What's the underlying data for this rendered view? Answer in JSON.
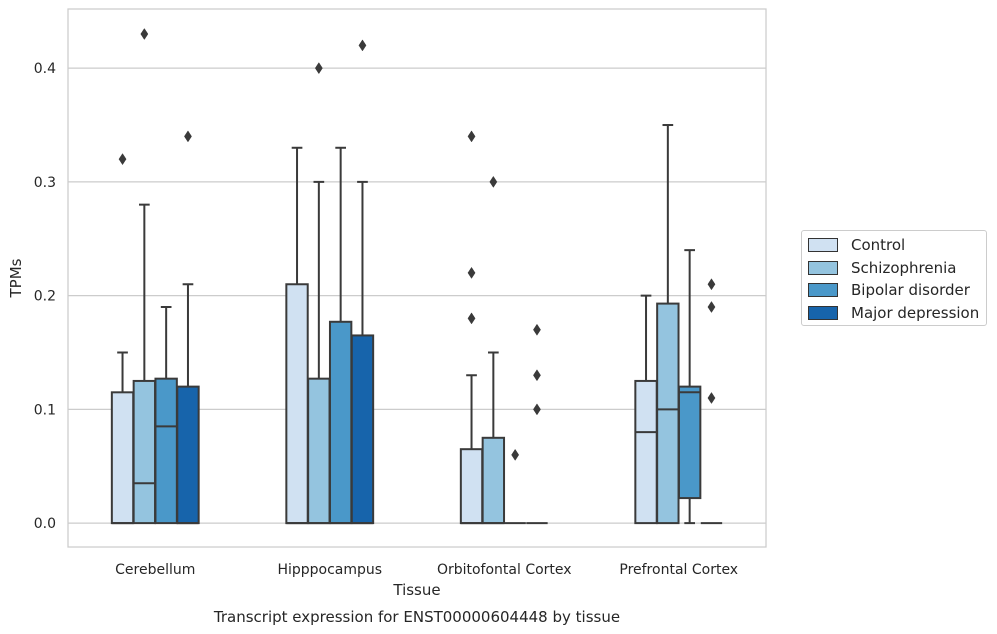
{
  "chart_data": {
    "type": "box",
    "title": "",
    "xlabel": "Tissue",
    "ylabel": "TPMs",
    "caption": "Transcript expression for ENST00000604448 by tissue",
    "ylim": [
      -0.021,
      0.452
    ],
    "yticks": [
      0.0,
      0.1,
      0.2,
      0.3,
      0.4
    ],
    "ytick_labels": [
      "0.0",
      "0.1",
      "0.2",
      "0.3",
      "0.4"
    ],
    "grid": true,
    "legend_position": "right",
    "categories": [
      "Cerebellum",
      "Hipppocampus",
      "Orbitofontal Cortex",
      "Prefrontal Cortex"
    ],
    "series": [
      {
        "name": "Control",
        "color": "#d0e1f2",
        "boxes": [
          {
            "whislo": 0.0,
            "q1": 0.0,
            "med": 0.0,
            "q3": 0.115,
            "whishi": 0.15,
            "fliers": [
              0.32
            ]
          },
          {
            "whislo": 0.0,
            "q1": 0.0,
            "med": 0.0,
            "q3": 0.21,
            "whishi": 0.33,
            "fliers": []
          },
          {
            "whislo": 0.0,
            "q1": 0.0,
            "med": 0.0,
            "q3": 0.065,
            "whishi": 0.13,
            "fliers": [
              0.34,
              0.22,
              0.18
            ]
          },
          {
            "whislo": 0.0,
            "q1": 0.0,
            "med": 0.08,
            "q3": 0.125,
            "whishi": 0.2,
            "fliers": []
          }
        ]
      },
      {
        "name": "Schizophrenia",
        "color": "#94c4df",
        "boxes": [
          {
            "whislo": 0.0,
            "q1": 0.0,
            "med": 0.035,
            "q3": 0.125,
            "whishi": 0.28,
            "fliers": [
              0.43
            ]
          },
          {
            "whislo": 0.0,
            "q1": 0.0,
            "med": 0.0,
            "q3": 0.127,
            "whishi": 0.3,
            "fliers": [
              0.4
            ]
          },
          {
            "whislo": 0.0,
            "q1": 0.0,
            "med": 0.0,
            "q3": 0.075,
            "whishi": 0.15,
            "fliers": [
              0.3
            ]
          },
          {
            "whislo": 0.0,
            "q1": 0.0,
            "med": 0.1,
            "q3": 0.193,
            "whishi": 0.35,
            "fliers": []
          }
        ]
      },
      {
        "name": "Bipolar disorder",
        "color": "#4a98c9",
        "boxes": [
          {
            "whislo": 0.0,
            "q1": 0.0,
            "med": 0.085,
            "q3": 0.127,
            "whishi": 0.19,
            "fliers": []
          },
          {
            "whislo": 0.0,
            "q1": 0.0,
            "med": 0.0,
            "q3": 0.177,
            "whishi": 0.33,
            "fliers": []
          },
          {
            "whislo": 0.0,
            "q1": 0.0,
            "med": 0.0,
            "q3": 0.0,
            "whishi": 0.0,
            "fliers": [
              0.06
            ]
          },
          {
            "whislo": 0.0,
            "q1": 0.022,
            "med": 0.115,
            "q3": 0.12,
            "whishi": 0.24,
            "fliers": []
          }
        ]
      },
      {
        "name": "Major depression",
        "color": "#1764ab",
        "boxes": [
          {
            "whislo": 0.0,
            "q1": 0.0,
            "med": 0.0,
            "q3": 0.12,
            "whishi": 0.21,
            "fliers": [
              0.34
            ]
          },
          {
            "whislo": 0.0,
            "q1": 0.0,
            "med": 0.0,
            "q3": 0.165,
            "whishi": 0.3,
            "fliers": [
              0.42
            ]
          },
          {
            "whislo": 0.0,
            "q1": 0.0,
            "med": 0.0,
            "q3": 0.0,
            "whishi": 0.0,
            "fliers": [
              0.17,
              0.13,
              0.1
            ]
          },
          {
            "whislo": 0.0,
            "q1": 0.0,
            "med": 0.0,
            "q3": 0.0,
            "whishi": 0.0,
            "fliers": [
              0.21,
              0.19,
              0.11
            ]
          }
        ]
      }
    ]
  }
}
